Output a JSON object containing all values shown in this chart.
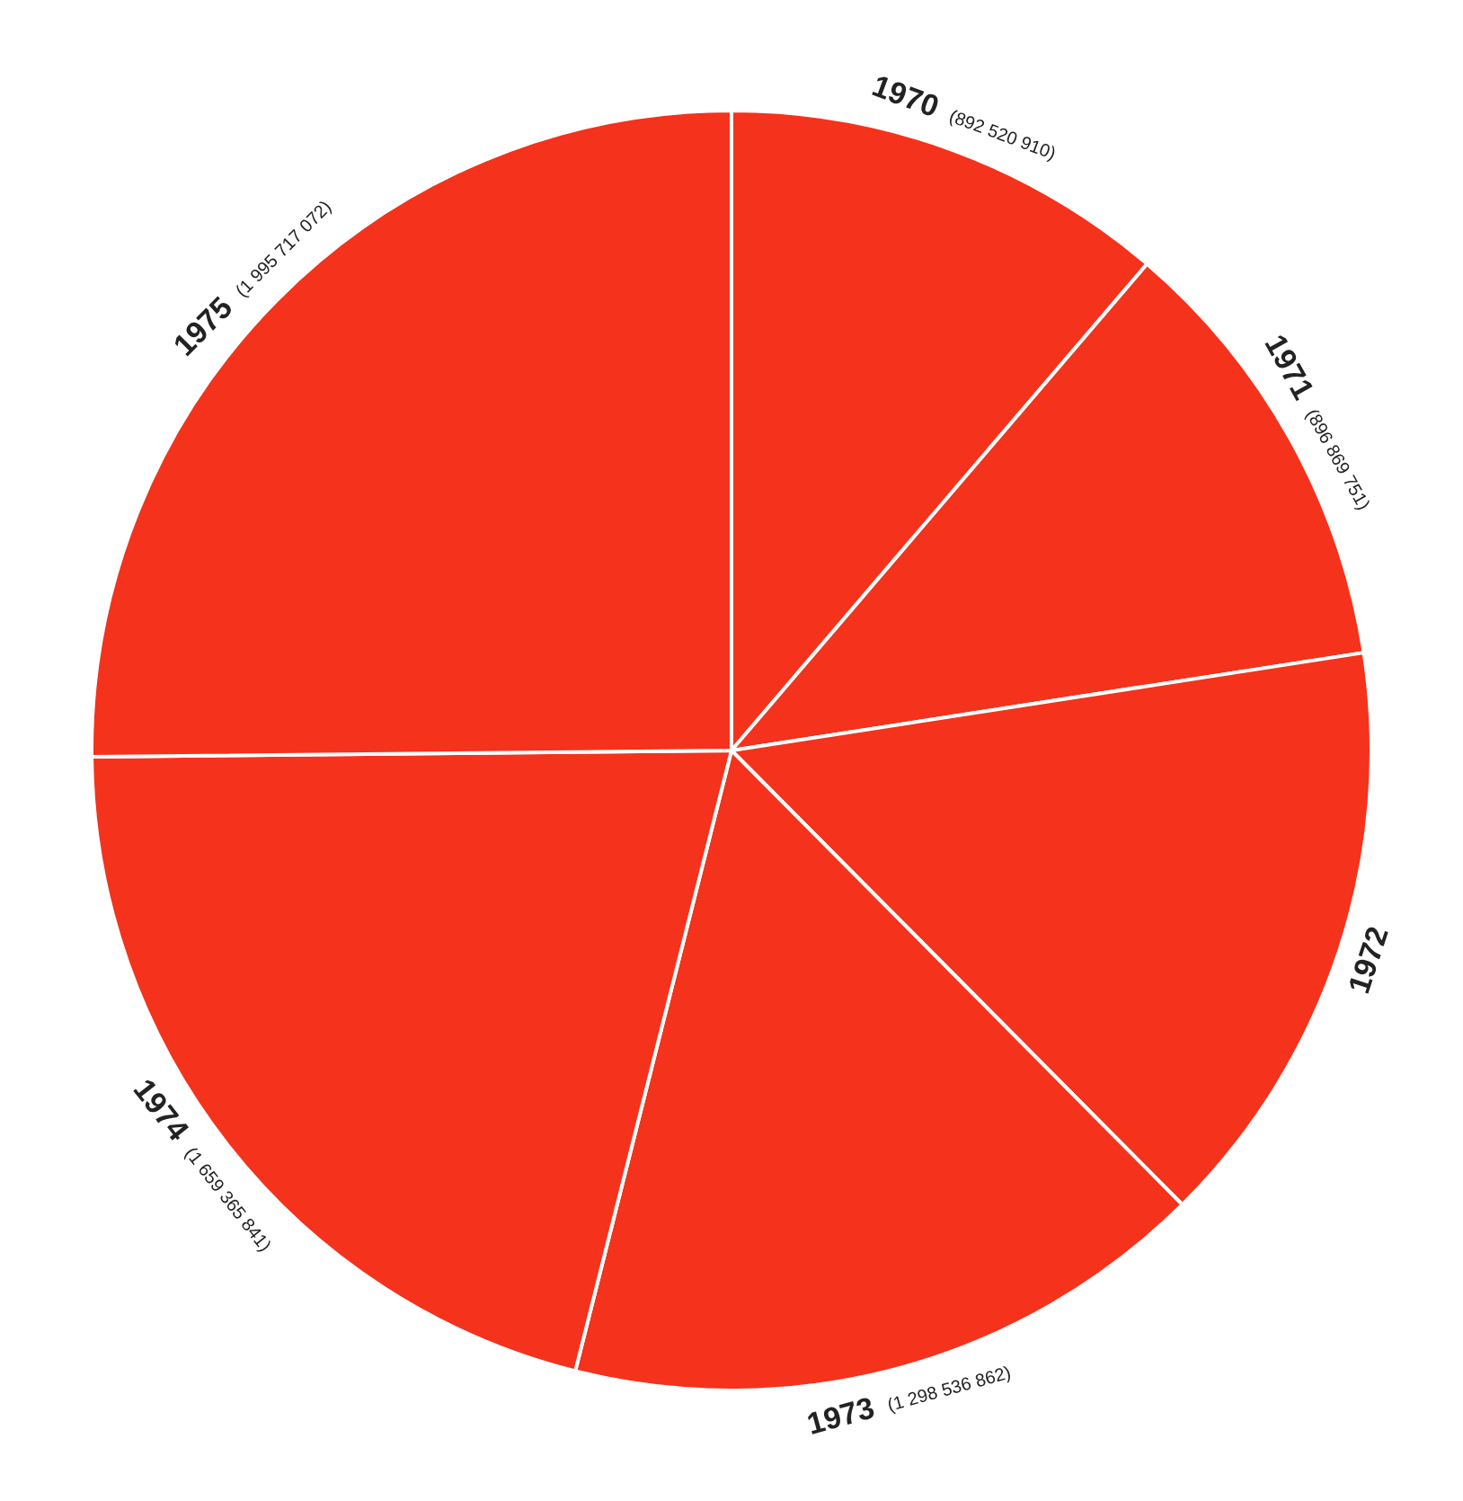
{
  "chart_data": {
    "type": "pie",
    "categories": [
      "1970",
      "1971",
      "1972",
      "1973",
      "1974",
      "1975"
    ],
    "values": [
      892520910,
      896869751,
      1190000000,
      1298536862,
      1659365841,
      1995717072
    ],
    "value_labels": [
      "(892 520 910)",
      "(896 869 751)",
      null,
      "(1 298 536 862)",
      "(1 659 365 841)",
      "(1 995 717 072)"
    ],
    "colors": [
      "#f5321c",
      "#f5321c",
      "#f5321c",
      "#f5321c",
      "#f5321c",
      "#f5321c"
    ],
    "legend": false
  }
}
